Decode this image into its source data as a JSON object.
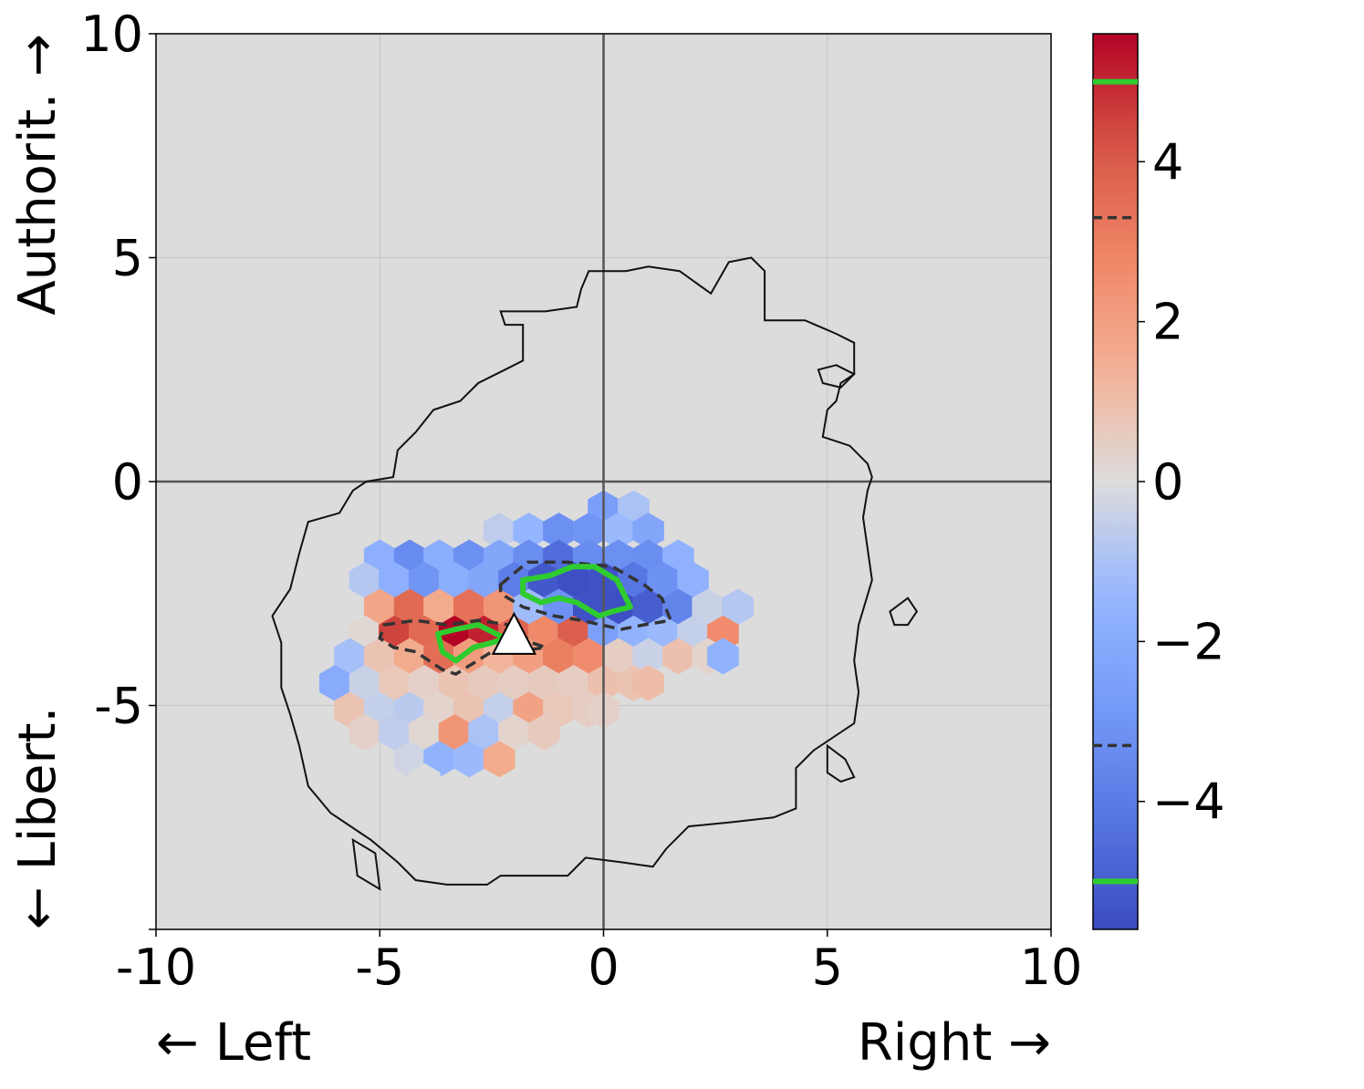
{
  "chart_data": {
    "type": "heatmap",
    "subtype": "hexbin",
    "xlabel_left": "← Left",
    "xlabel_right": "Right →",
    "ylabel_top": "Authorit. →",
    "ylabel_bottom": "← Libert.",
    "xlim": [
      -10,
      10
    ],
    "ylim": [
      -10,
      10
    ],
    "xticks": [
      -10,
      -5,
      0,
      5,
      10
    ],
    "xtick_labels": [
      "-10",
      "-5",
      "0",
      "5",
      "10"
    ],
    "yticks": [
      -10,
      -5,
      0,
      5,
      10
    ],
    "ytick_labels": [
      "",
      "-5",
      "0",
      "5",
      "10"
    ],
    "grid": true,
    "background": "#dcdcdc",
    "colormap": "coolwarm",
    "vmin": -5.6,
    "vmax": 5.6,
    "colorbar": {
      "ticks": [
        4,
        2,
        0,
        -2,
        -4
      ],
      "tick_labels": [
        "4",
        "2",
        "0",
        "−2",
        "−4"
      ],
      "green_levels": [
        5.0,
        -5.0
      ],
      "dashed_levels": [
        3.3,
        -3.3
      ]
    },
    "marker": {
      "shape": "triangle",
      "x": -2.0,
      "y": -3.5,
      "color": "#ffffff"
    },
    "cells": [
      {
        "x": 0.0,
        "y": -0.6,
        "v": -2.6
      },
      {
        "x": 0.67,
        "y": -0.6,
        "v": -1.0
      },
      {
        "x": -2.33,
        "y": -1.1,
        "v": -0.6
      },
      {
        "x": -1.67,
        "y": -1.1,
        "v": -1.5
      },
      {
        "x": -1.0,
        "y": -1.1,
        "v": -3.2
      },
      {
        "x": -0.33,
        "y": -1.1,
        "v": -3.0
      },
      {
        "x": 0.33,
        "y": -1.1,
        "v": -1.3
      },
      {
        "x": 1.0,
        "y": -1.1,
        "v": -2.2
      },
      {
        "x": -5.0,
        "y": -1.7,
        "v": -1.8
      },
      {
        "x": -4.33,
        "y": -1.7,
        "v": -3.4
      },
      {
        "x": -3.67,
        "y": -1.7,
        "v": -1.9
      },
      {
        "x": -3.0,
        "y": -1.7,
        "v": -3.2
      },
      {
        "x": -2.33,
        "y": -1.7,
        "v": -2.2
      },
      {
        "x": -1.67,
        "y": -1.7,
        "v": -3.3
      },
      {
        "x": -1.0,
        "y": -1.7,
        "v": -4.5
      },
      {
        "x": -0.33,
        "y": -1.7,
        "v": -3.4
      },
      {
        "x": 0.33,
        "y": -1.7,
        "v": -3.2
      },
      {
        "x": 1.0,
        "y": -1.7,
        "v": -3.3
      },
      {
        "x": 1.67,
        "y": -1.7,
        "v": -1.7
      },
      {
        "x": -5.33,
        "y": -2.2,
        "v": -0.8
      },
      {
        "x": -4.67,
        "y": -2.2,
        "v": -1.8
      },
      {
        "x": -4.0,
        "y": -2.2,
        "v": -3.0
      },
      {
        "x": -3.33,
        "y": -2.2,
        "v": -1.9
      },
      {
        "x": -2.67,
        "y": -2.2,
        "v": -2.2
      },
      {
        "x": -2.0,
        "y": -2.2,
        "v": -3.9
      },
      {
        "x": -1.33,
        "y": -2.2,
        "v": -5.2
      },
      {
        "x": -0.67,
        "y": -2.2,
        "v": -5.5
      },
      {
        "x": 0.0,
        "y": -2.2,
        "v": -5.4
      },
      {
        "x": 0.67,
        "y": -2.2,
        "v": -4.2
      },
      {
        "x": 1.33,
        "y": -2.2,
        "v": -3.1
      },
      {
        "x": 2.0,
        "y": -2.2,
        "v": -1.7
      },
      {
        "x": -5.0,
        "y": -2.8,
        "v": 1.8
      },
      {
        "x": -4.33,
        "y": -2.8,
        "v": 3.6
      },
      {
        "x": -3.67,
        "y": -2.8,
        "v": 1.6
      },
      {
        "x": -3.0,
        "y": -2.8,
        "v": 3.4
      },
      {
        "x": -2.33,
        "y": -2.8,
        "v": 2.3
      },
      {
        "x": -1.67,
        "y": -2.8,
        "v": -1.2
      },
      {
        "x": -1.0,
        "y": -2.8,
        "v": -3.1
      },
      {
        "x": -0.33,
        "y": -2.8,
        "v": -5.4
      },
      {
        "x": 0.33,
        "y": -2.8,
        "v": -5.5
      },
      {
        "x": 1.0,
        "y": -2.8,
        "v": -5.0
      },
      {
        "x": 1.67,
        "y": -2.8,
        "v": -3.6
      },
      {
        "x": 2.33,
        "y": -2.8,
        "v": -0.4
      },
      {
        "x": 3.0,
        "y": -2.8,
        "v": -0.8
      },
      {
        "x": -5.33,
        "y": -3.4,
        "v": 0.2
      },
      {
        "x": -4.67,
        "y": -3.4,
        "v": 4.5
      },
      {
        "x": -4.0,
        "y": -3.4,
        "v": 3.6
      },
      {
        "x": -3.33,
        "y": -3.4,
        "v": 5.6
      },
      {
        "x": -2.67,
        "y": -3.4,
        "v": 5.1
      },
      {
        "x": -2.0,
        "y": -3.4,
        "v": 3.7
      },
      {
        "x": -1.33,
        "y": -3.4,
        "v": 2.7
      },
      {
        "x": -0.67,
        "y": -3.4,
        "v": 3.9
      },
      {
        "x": 0.0,
        "y": -3.4,
        "v": -2.5
      },
      {
        "x": 0.67,
        "y": -3.4,
        "v": -1.6
      },
      {
        "x": 1.33,
        "y": -3.4,
        "v": -1.3
      },
      {
        "x": 2.0,
        "y": -3.4,
        "v": -0.5
      },
      {
        "x": 2.67,
        "y": -3.4,
        "v": 2.6
      },
      {
        "x": -5.67,
        "y": -3.9,
        "v": -1.1
      },
      {
        "x": -5.0,
        "y": -3.9,
        "v": 0.8
      },
      {
        "x": -4.33,
        "y": -3.9,
        "v": 1.6
      },
      {
        "x": -3.67,
        "y": -3.9,
        "v": 3.5
      },
      {
        "x": -3.0,
        "y": -3.9,
        "v": 2.1
      },
      {
        "x": -2.33,
        "y": -3.9,
        "v": 1.3
      },
      {
        "x": -1.67,
        "y": -3.9,
        "v": 2.0
      },
      {
        "x": -1.0,
        "y": -3.9,
        "v": 3.0
      },
      {
        "x": -0.33,
        "y": -3.9,
        "v": 2.6
      },
      {
        "x": 0.33,
        "y": -3.9,
        "v": 0.5
      },
      {
        "x": 1.0,
        "y": -3.9,
        "v": -0.4
      },
      {
        "x": 1.67,
        "y": -3.9,
        "v": 0.9
      },
      {
        "x": 2.33,
        "y": -3.9,
        "v": 0.3
      },
      {
        "x": 2.67,
        "y": -3.9,
        "v": -1.6
      },
      {
        "x": -6.0,
        "y": -4.5,
        "v": -2.0
      },
      {
        "x": -5.33,
        "y": -4.5,
        "v": -0.4
      },
      {
        "x": -4.67,
        "y": -4.5,
        "v": 0.7
      },
      {
        "x": -4.0,
        "y": -4.5,
        "v": 0.4
      },
      {
        "x": -3.33,
        "y": -4.5,
        "v": 0.8
      },
      {
        "x": -2.67,
        "y": -4.5,
        "v": 0.6
      },
      {
        "x": -2.0,
        "y": -4.5,
        "v": 0.5
      },
      {
        "x": -1.33,
        "y": -4.5,
        "v": 0.6
      },
      {
        "x": -0.67,
        "y": -4.5,
        "v": 0.5
      },
      {
        "x": 0.0,
        "y": -4.5,
        "v": 0.9
      },
      {
        "x": 0.67,
        "y": -4.5,
        "v": 0.8
      },
      {
        "x": 1.0,
        "y": -4.5,
        "v": 1.0
      },
      {
        "x": -5.67,
        "y": -5.1,
        "v": 0.8
      },
      {
        "x": -5.0,
        "y": -5.1,
        "v": -0.5
      },
      {
        "x": -4.33,
        "y": -5.1,
        "v": -0.7
      },
      {
        "x": -3.67,
        "y": -5.1,
        "v": 0.3
      },
      {
        "x": -3.0,
        "y": -5.1,
        "v": 0.8
      },
      {
        "x": -2.33,
        "y": -5.1,
        "v": -0.5
      },
      {
        "x": -1.67,
        "y": -5.1,
        "v": 1.9
      },
      {
        "x": -1.0,
        "y": -5.1,
        "v": 0.7
      },
      {
        "x": -0.33,
        "y": -5.1,
        "v": 0.5
      },
      {
        "x": 0.0,
        "y": -5.1,
        "v": 0.4
      },
      {
        "x": -5.33,
        "y": -5.6,
        "v": 0.4
      },
      {
        "x": -4.67,
        "y": -5.6,
        "v": -0.6
      },
      {
        "x": -4.0,
        "y": -5.6,
        "v": 0.2
      },
      {
        "x": -3.33,
        "y": -5.6,
        "v": 2.3
      },
      {
        "x": -2.67,
        "y": -5.6,
        "v": -1.0
      },
      {
        "x": -2.0,
        "y": -5.6,
        "v": 0.3
      },
      {
        "x": -1.33,
        "y": -5.6,
        "v": 0.6
      },
      {
        "x": -4.33,
        "y": -6.2,
        "v": -0.3
      },
      {
        "x": -3.67,
        "y": -6.2,
        "v": -1.6
      },
      {
        "x": -3.0,
        "y": -6.2,
        "v": -1.3
      },
      {
        "x": -2.33,
        "y": -6.2,
        "v": 1.6
      },
      {
        "x": -4.0,
        "y": -6.7,
        "v": 0.0
      }
    ],
    "outline_contour": [
      [
        -0.33,
        4.7
      ],
      [
        0.5,
        4.7
      ],
      [
        1.0,
        4.8
      ],
      [
        1.7,
        4.7
      ],
      [
        2.4,
        4.2
      ],
      [
        2.8,
        4.9
      ],
      [
        3.3,
        5.0
      ],
      [
        3.6,
        4.7
      ],
      [
        3.6,
        3.6
      ],
      [
        4.5,
        3.6
      ],
      [
        5.2,
        3.3
      ],
      [
        5.6,
        3.1
      ],
      [
        5.6,
        2.4
      ],
      [
        5.3,
        2.2
      ],
      [
        5.2,
        1.8
      ],
      [
        5.0,
        1.6
      ],
      [
        4.9,
        1.0
      ],
      [
        5.5,
        0.8
      ],
      [
        5.9,
        0.4
      ],
      [
        6.0,
        0.1
      ],
      [
        5.9,
        -0.2
      ],
      [
        5.8,
        -0.8
      ],
      [
        5.9,
        -1.5
      ],
      [
        6.0,
        -2.2
      ],
      [
        5.7,
        -3.2
      ],
      [
        5.6,
        -4.0
      ],
      [
        5.7,
        -4.7
      ],
      [
        5.6,
        -5.4
      ],
      [
        4.7,
        -6.0
      ],
      [
        4.3,
        -6.4
      ],
      [
        4.3,
        -7.3
      ],
      [
        3.8,
        -7.5
      ],
      [
        2.9,
        -7.6
      ],
      [
        1.9,
        -7.7
      ],
      [
        1.4,
        -8.2
      ],
      [
        1.1,
        -8.6
      ],
      [
        0.4,
        -8.5
      ],
      [
        -0.4,
        -8.4
      ],
      [
        -0.8,
        -8.8
      ],
      [
        -1.5,
        -8.8
      ],
      [
        -2.3,
        -8.8
      ],
      [
        -2.6,
        -9.0
      ],
      [
        -3.5,
        -9.0
      ],
      [
        -4.2,
        -8.9
      ],
      [
        -4.6,
        -8.5
      ],
      [
        -5.2,
        -8.0
      ],
      [
        -5.5,
        -7.8
      ],
      [
        -6.1,
        -7.4
      ],
      [
        -6.6,
        -6.8
      ],
      [
        -6.8,
        -5.9
      ],
      [
        -7.0,
        -5.2
      ],
      [
        -7.2,
        -4.6
      ],
      [
        -7.2,
        -3.6
      ],
      [
        -7.4,
        -3.0
      ],
      [
        -7.0,
        -2.4
      ],
      [
        -6.8,
        -1.6
      ],
      [
        -6.6,
        -0.9
      ],
      [
        -5.9,
        -0.7
      ],
      [
        -5.6,
        -0.2
      ],
      [
        -5.3,
        0.0
      ],
      [
        -4.7,
        0.1
      ],
      [
        -4.6,
        0.7
      ],
      [
        -4.2,
        1.1
      ],
      [
        -3.8,
        1.6
      ],
      [
        -3.2,
        1.8
      ],
      [
        -2.8,
        2.2
      ],
      [
        -2.2,
        2.5
      ],
      [
        -1.8,
        2.7
      ],
      [
        -1.8,
        3.5
      ],
      [
        -2.2,
        3.5
      ],
      [
        -2.3,
        3.8
      ],
      [
        -1.3,
        3.8
      ],
      [
        -0.6,
        3.9
      ],
      [
        -0.5,
        4.3
      ],
      [
        -0.33,
        4.7
      ]
    ],
    "outline_islands": [
      [
        [
          6.4,
          -2.9
        ],
        [
          6.8,
          -2.6
        ],
        [
          7.0,
          -2.9
        ],
        [
          6.8,
          -3.2
        ],
        [
          6.5,
          -3.2
        ],
        [
          6.4,
          -2.9
        ]
      ],
      [
        [
          4.8,
          2.5
        ],
        [
          5.2,
          2.6
        ],
        [
          5.6,
          2.4
        ],
        [
          5.3,
          2.1
        ],
        [
          4.9,
          2.2
        ],
        [
          4.8,
          2.5
        ]
      ],
      [
        [
          5.0,
          -5.9
        ],
        [
          5.4,
          -6.2
        ],
        [
          5.6,
          -6.6
        ],
        [
          5.3,
          -6.7
        ],
        [
          5.0,
          -6.5
        ],
        [
          5.0,
          -5.9
        ]
      ],
      [
        [
          -5.6,
          -8.0
        ],
        [
          -5.1,
          -8.3
        ],
        [
          -5.0,
          -9.1
        ],
        [
          -5.5,
          -8.8
        ],
        [
          -5.6,
          -8.0
        ]
      ]
    ],
    "dashed_contours": [
      [
        [
          -2.3,
          -2.3
        ],
        [
          -1.7,
          -1.8
        ],
        [
          -0.8,
          -1.8
        ],
        [
          0.2,
          -1.9
        ],
        [
          0.9,
          -2.3
        ],
        [
          1.3,
          -2.6
        ],
        [
          1.5,
          -3.1
        ],
        [
          0.9,
          -3.2
        ],
        [
          0.4,
          -3.3
        ],
        [
          -0.5,
          -3.1
        ],
        [
          -1.1,
          -3.0
        ],
        [
          -1.8,
          -2.8
        ],
        [
          -2.3,
          -2.5
        ],
        [
          -2.3,
          -2.3
        ]
      ],
      [
        [
          -4.9,
          -3.2
        ],
        [
          -4.2,
          -3.1
        ],
        [
          -3.5,
          -3.2
        ],
        [
          -2.8,
          -3.1
        ],
        [
          -2.1,
          -3.2
        ],
        [
          -1.6,
          -3.6
        ],
        [
          -1.3,
          -3.7
        ],
        [
          -1.9,
          -3.8
        ],
        [
          -2.5,
          -3.8
        ],
        [
          -3.3,
          -4.3
        ],
        [
          -3.6,
          -4.2
        ],
        [
          -4.2,
          -3.8
        ],
        [
          -4.7,
          -3.7
        ],
        [
          -5.0,
          -3.5
        ],
        [
          -4.9,
          -3.2
        ]
      ]
    ],
    "green_contours": [
      [
        [
          -1.8,
          -2.2
        ],
        [
          -1.2,
          -2.1
        ],
        [
          -0.7,
          -1.9
        ],
        [
          -0.2,
          -1.9
        ],
        [
          0.3,
          -2.2
        ],
        [
          0.6,
          -2.8
        ],
        [
          0.2,
          -2.9
        ],
        [
          -0.1,
          -3.0
        ],
        [
          -0.6,
          -2.7
        ],
        [
          -1.0,
          -2.6
        ],
        [
          -1.4,
          -2.7
        ],
        [
          -1.8,
          -2.5
        ],
        [
          -1.8,
          -2.2
        ]
      ],
      [
        [
          -3.7,
          -3.4
        ],
        [
          -3.3,
          -3.3
        ],
        [
          -2.8,
          -3.2
        ],
        [
          -2.2,
          -3.5
        ],
        [
          -2.5,
          -3.6
        ],
        [
          -2.9,
          -3.7
        ],
        [
          -3.3,
          -4.0
        ],
        [
          -3.6,
          -3.8
        ],
        [
          -3.7,
          -3.4
        ]
      ]
    ]
  }
}
